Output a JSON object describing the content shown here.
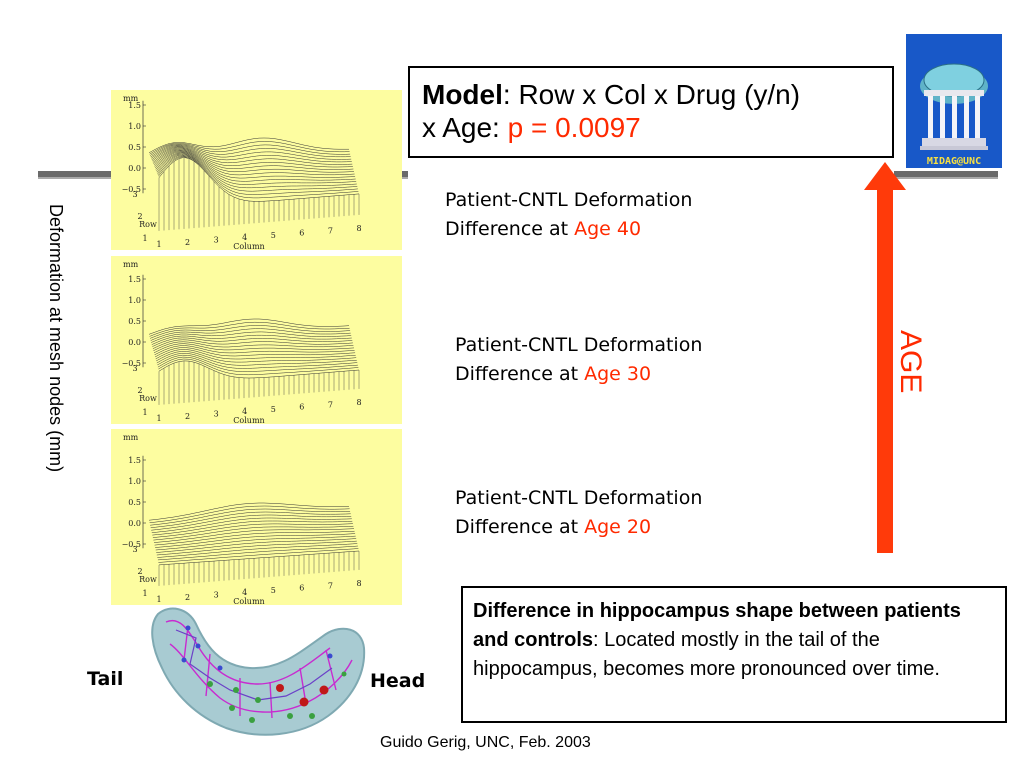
{
  "model_box": {
    "bold": "Model",
    "line1_rest": ": Row x Col x Drug (y/n)",
    "line2_prefix": "x Age: ",
    "p_value": "p = 0.0097"
  },
  "logo": {
    "text": "MIDAG@UNC",
    "icon": "old-well-icon"
  },
  "y_axis_label": "Deformation at mesh nodes (mm)",
  "age_arrow_label": "AGE",
  "panels": [
    {
      "caption_line1": "Patient-CNTL Deformation",
      "caption_line2_prefix": "Difference at ",
      "age": "Age 40"
    },
    {
      "caption_line1": "Patient-CNTL Deformation",
      "caption_line2_prefix": "Difference at ",
      "age": "Age 30"
    },
    {
      "caption_line1": "Patient-CNTL Deformation",
      "caption_line2_prefix": "Difference at ",
      "age": "Age 20"
    }
  ],
  "plot_axes": {
    "unit": "mm",
    "z_ticks": [
      "1.5",
      "1.0",
      "0.5",
      "0.0",
      "−0.5"
    ],
    "row_ticks": [
      "3",
      "2",
      "1"
    ],
    "row_label": "Row",
    "col_ticks": [
      "1",
      "2",
      "3",
      "4",
      "5",
      "6",
      "7",
      "8"
    ],
    "col_label": "Column"
  },
  "summary": {
    "bold": "Difference in hippocampus shape between patients and controls",
    "rest": ": Located mostly in the tail of the hippocampus, becomes more pronounced over time."
  },
  "hippocampus": {
    "tail_label": "Tail",
    "head_label": "Head"
  },
  "footer": "Guido Gerig, UNC, Feb. 2003",
  "colors": {
    "accent_red": "#ff2a00",
    "panel_bg": "#fdfda0",
    "logo_blue": "#1858c8",
    "rule": "#6a6a6a"
  }
}
